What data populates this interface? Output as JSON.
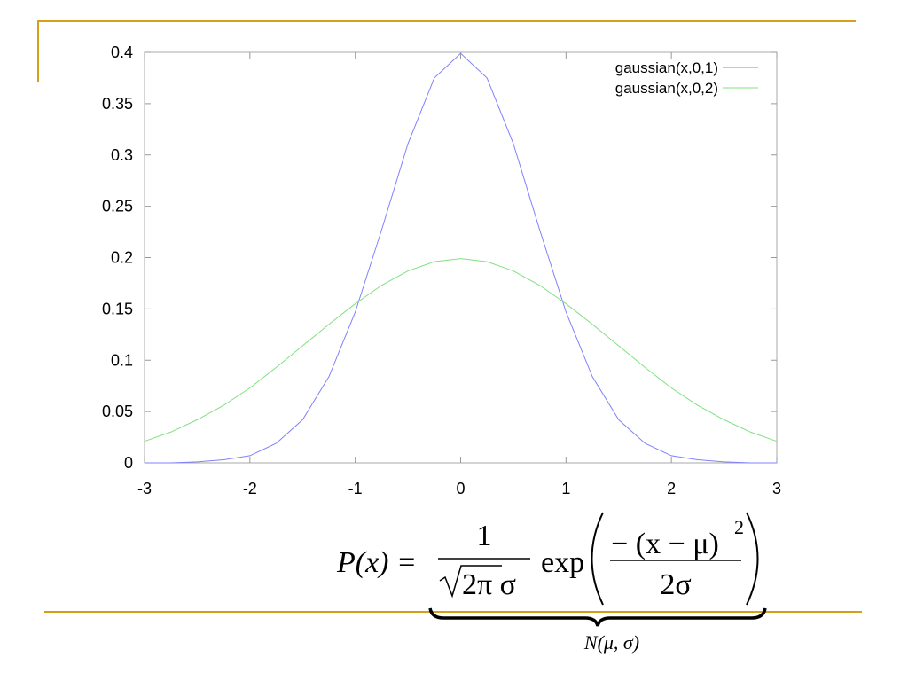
{
  "chart_data": {
    "type": "line",
    "x": [
      -3,
      -2.75,
      -2.5,
      -2.25,
      -2,
      -1.75,
      -1.5,
      -1.25,
      -1,
      -0.75,
      -0.5,
      -0.25,
      0,
      0.25,
      0.5,
      0.75,
      1,
      1.25,
      1.5,
      1.75,
      2,
      2.25,
      2.5,
      2.75,
      3
    ],
    "series": [
      {
        "name": "gaussian(x,0,1)",
        "color": "#8080ff",
        "values": [
          0.0,
          0.0,
          0.001,
          0.003,
          0.007,
          0.019,
          0.042,
          0.084,
          0.147,
          0.227,
          0.311,
          0.375,
          0.399,
          0.375,
          0.311,
          0.227,
          0.147,
          0.084,
          0.042,
          0.019,
          0.007,
          0.003,
          0.001,
          0.0,
          0.0
        ]
      },
      {
        "name": "gaussian(x,0,2)",
        "color": "#80e080",
        "values": [
          0.021,
          0.03,
          0.042,
          0.056,
          0.073,
          0.093,
          0.114,
          0.135,
          0.155,
          0.173,
          0.187,
          0.196,
          0.199,
          0.196,
          0.187,
          0.173,
          0.155,
          0.135,
          0.114,
          0.093,
          0.073,
          0.056,
          0.042,
          0.03,
          0.021
        ]
      }
    ],
    "xlim": [
      -3,
      3
    ],
    "xticks": [
      -3,
      -2,
      -1,
      0,
      1,
      2,
      3
    ],
    "ylim": [
      0,
      0.4
    ],
    "yticks": [
      0,
      0.05,
      0.1,
      0.15,
      0.2,
      0.25,
      0.3,
      0.35,
      0.4
    ],
    "grid": false,
    "legend": "top right"
  },
  "formula": {
    "lhs": "P(x) =",
    "numerator": "1",
    "denominator": "2π σ",
    "function": "exp",
    "exp_numerator": "− (x − μ)",
    "exponent": "2",
    "exp_denominator": "2σ"
  },
  "brace_label": "N(μ, σ)"
}
